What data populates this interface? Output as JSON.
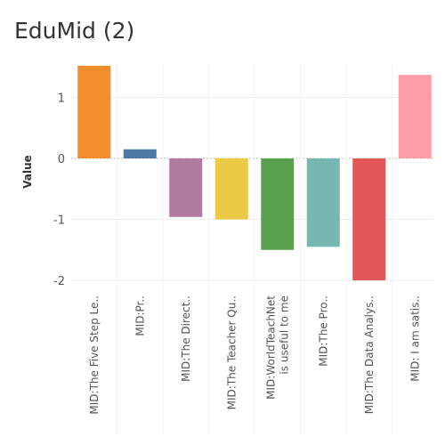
{
  "title": "EduMid (2)",
  "chart_data": {
    "type": "bar",
    "ylabel": "Value",
    "xlabel": "",
    "ylim": [
      -2.2,
      1.55
    ],
    "yticks": [
      -2,
      -1,
      0,
      1
    ],
    "grid": true,
    "categories": [
      [
        "MID:The Five Step Le.."
      ],
      [
        "MID:Pr.."
      ],
      [
        "MID:The Direct.."
      ],
      [
        "MID:The Teacher Qu.."
      ],
      [
        "MID:WorldTeachNet",
        "is useful to me"
      ],
      [
        "MID:The Pro.."
      ],
      [
        "MID:The Data Analys.."
      ],
      [
        "MID: I am satis.."
      ]
    ],
    "values": [
      1.52,
      0.15,
      -0.96,
      -1.0,
      -1.5,
      -1.45,
      -2.0,
      1.37
    ],
    "colors": [
      "#f28e2b",
      "#4e79a7",
      "#b07aa1",
      "#edc948",
      "#59a14f",
      "#76b7b2",
      "#e15759",
      "#ff9da7"
    ]
  }
}
